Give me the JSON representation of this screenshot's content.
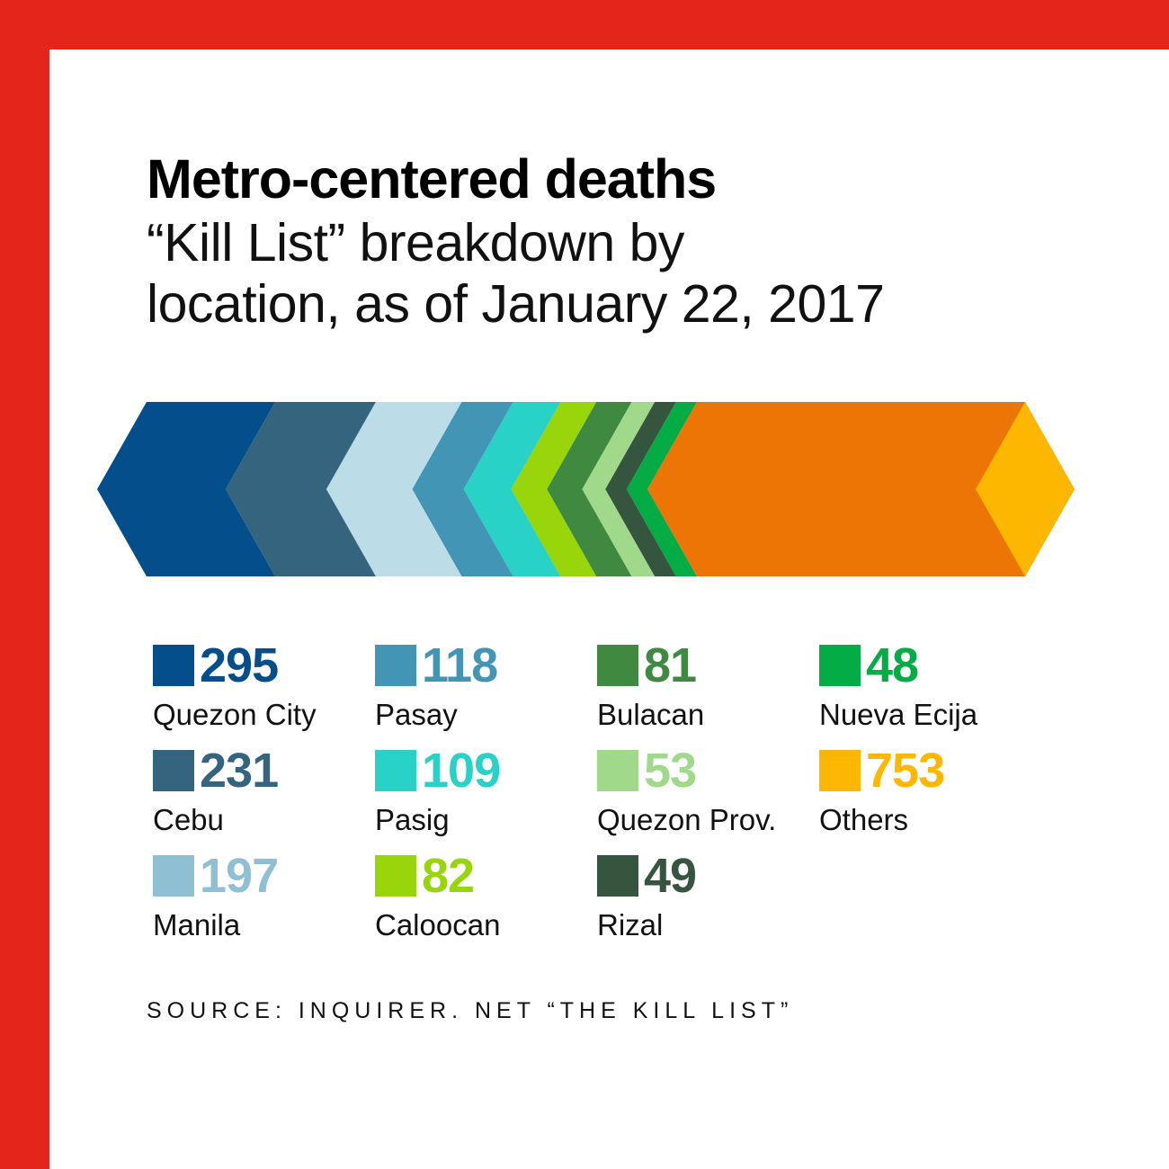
{
  "frame": {
    "color": "#e3251b"
  },
  "header": {
    "title": "Metro-centered deaths",
    "subtitle": "“Kill List” breakdown by\nlocation, as of January 22, 2017"
  },
  "chart_data": {
    "type": "bar",
    "title": "Metro-centered deaths",
    "subtitle": "“Kill List” breakdown by location, as of January 22, 2017",
    "categories": [
      "Quezon City",
      "Cebu",
      "Manila",
      "Pasay",
      "Pasig",
      "Caloocan",
      "Bulacan",
      "Quezon Prov.",
      "Rizal",
      "Nueva Ecija",
      "Others"
    ],
    "values": [
      295,
      231,
      197,
      118,
      109,
      82,
      81,
      53,
      49,
      48,
      753
    ],
    "colors": [
      "#044f8b",
      "#35647f",
      "#bcdde7",
      "#4395b5",
      "#28d2c7",
      "#98d50a",
      "#3f8941",
      "#a1d98b",
      "#36553e",
      "#04ac46",
      "#fdb700"
    ],
    "other_color": "#ec7505",
    "source": "SOURCE: INQUIRER. NET “THE KILL LIST”"
  },
  "legend": [
    {
      "value": "295",
      "label": "Quezon City"
    },
    {
      "value": "118",
      "label": "Pasay"
    },
    {
      "value": "81",
      "label": "Bulacan"
    },
    {
      "value": "48",
      "label": "Nueva Ecija"
    },
    {
      "value": "231",
      "label": "Cebu"
    },
    {
      "value": "109",
      "label": "Pasig"
    },
    {
      "value": "53",
      "label": "Quezon Prov."
    },
    {
      "value": "753",
      "label": "Others"
    },
    {
      "value": "197",
      "label": "Manila"
    },
    {
      "value": "82",
      "label": "Caloocan"
    },
    {
      "value": "49",
      "label": "Rizal"
    }
  ],
  "legend_colors": [
    "#044f8b",
    "#4395b5",
    "#3f8941",
    "#04ac46",
    "#35647f",
    "#28d2c7",
    "#a1d98b",
    "#fdb700",
    "#8fbfd3",
    "#98d50a",
    "#36553e"
  ]
}
